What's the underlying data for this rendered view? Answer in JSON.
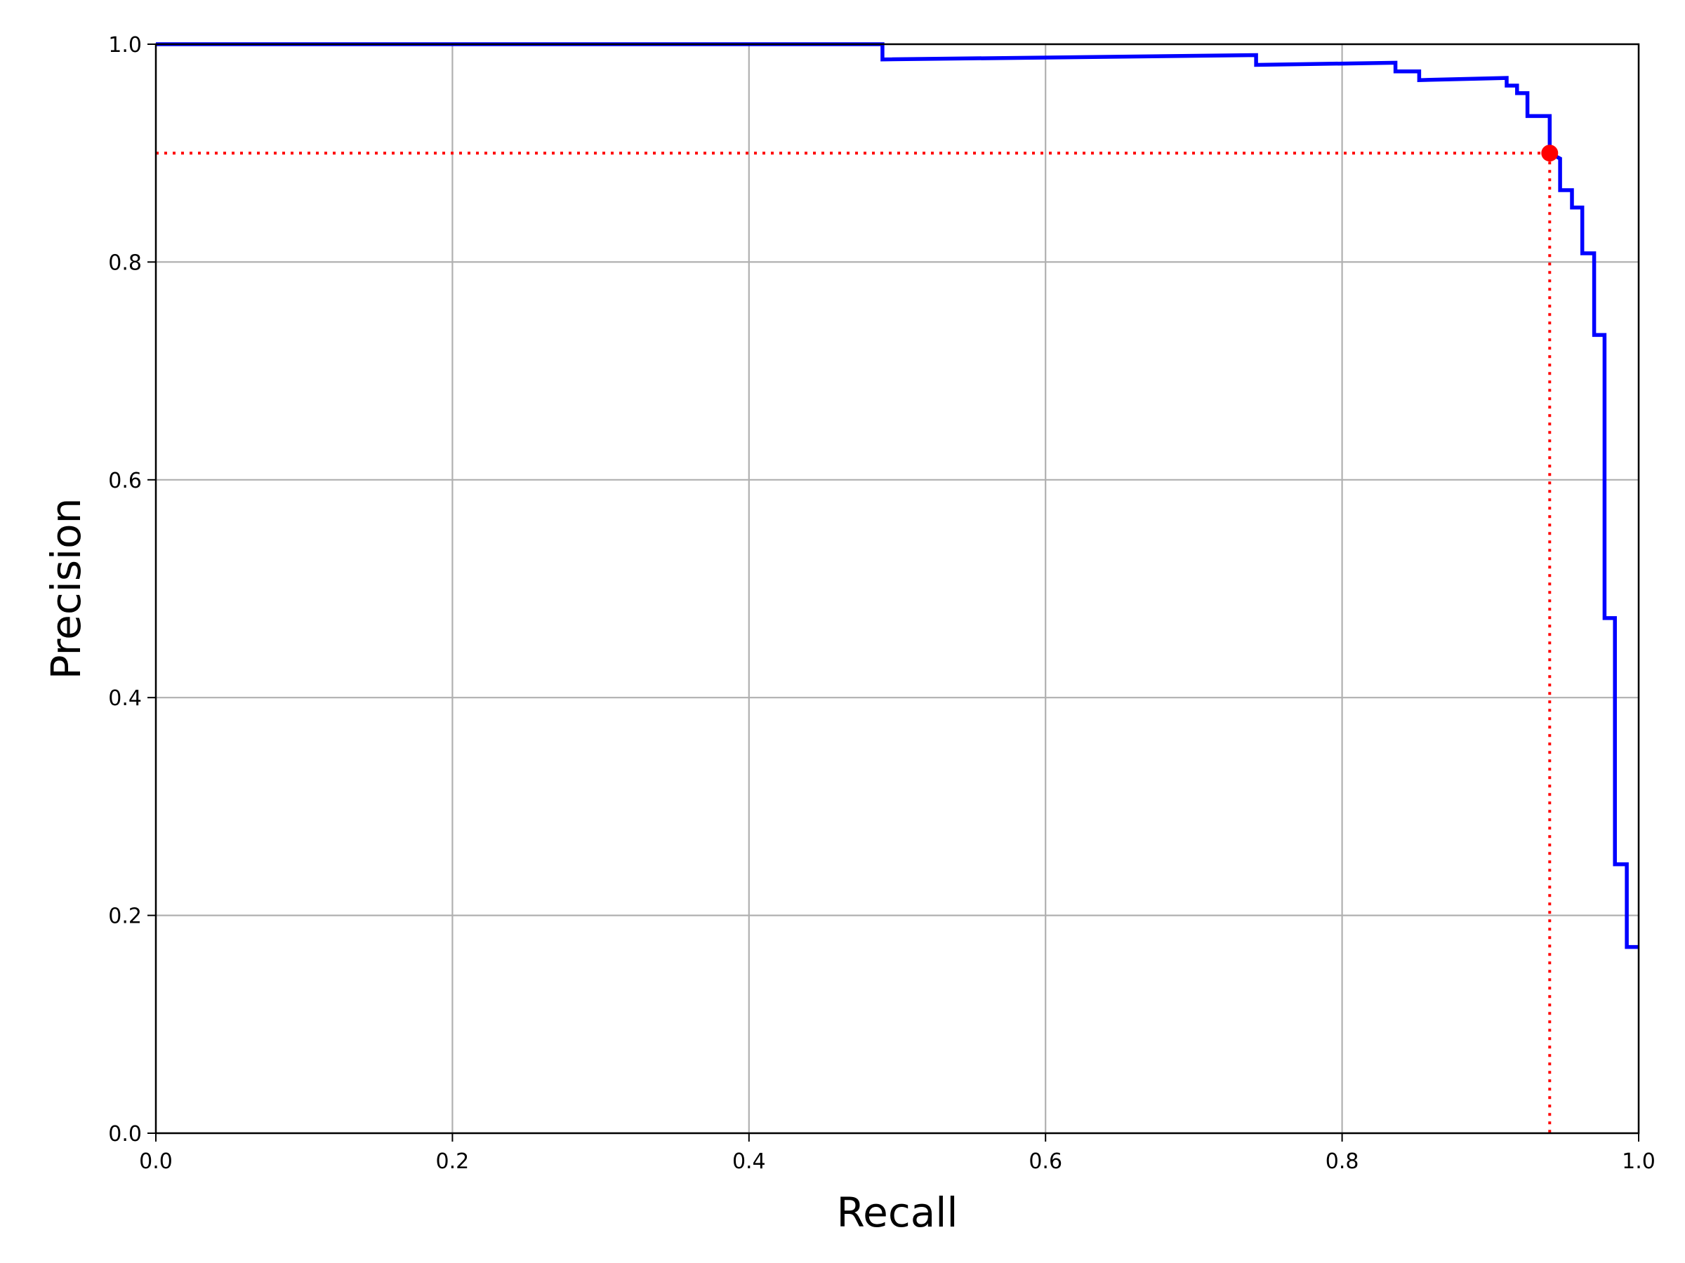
{
  "chart_data": {
    "type": "line",
    "title": "",
    "xlabel": "Recall",
    "ylabel": "Precision",
    "xlim": [
      0.0,
      1.0
    ],
    "ylim": [
      0.0,
      1.0
    ],
    "grid": true,
    "legend": "none",
    "x_ticks": [
      "0.0",
      "0.2",
      "0.4",
      "0.6",
      "0.8",
      "1.0"
    ],
    "y_ticks": [
      "0.0",
      "0.2",
      "0.4",
      "0.6",
      "0.8",
      "1.0"
    ],
    "series": [
      {
        "color": "#0000ff",
        "style": "step",
        "x": [
          0.0,
          0.49,
          0.49,
          0.742,
          0.742,
          0.836,
          0.836,
          0.852,
          0.852,
          0.911,
          0.911,
          0.918,
          0.918,
          0.925,
          0.925,
          0.94,
          0.94,
          0.947,
          0.947,
          0.955,
          0.955,
          0.962,
          0.962,
          0.97,
          0.97,
          0.977,
          0.977,
          0.984,
          0.984,
          0.992,
          0.992,
          1.0
        ],
        "y": [
          1.0,
          1.0,
          0.986,
          0.99,
          0.981,
          0.983,
          0.975,
          0.975,
          0.967,
          0.969,
          0.962,
          0.962,
          0.955,
          0.955,
          0.934,
          0.934,
          0.9,
          0.895,
          0.866,
          0.866,
          0.85,
          0.85,
          0.808,
          0.808,
          0.733,
          0.733,
          0.473,
          0.473,
          0.247,
          0.247,
          0.171,
          0.171
        ]
      }
    ],
    "annotations": [
      {
        "type": "point",
        "x": 0.94,
        "y": 0.9,
        "color": "#ff0000",
        "guides": "dotted lines to both axes"
      }
    ]
  }
}
